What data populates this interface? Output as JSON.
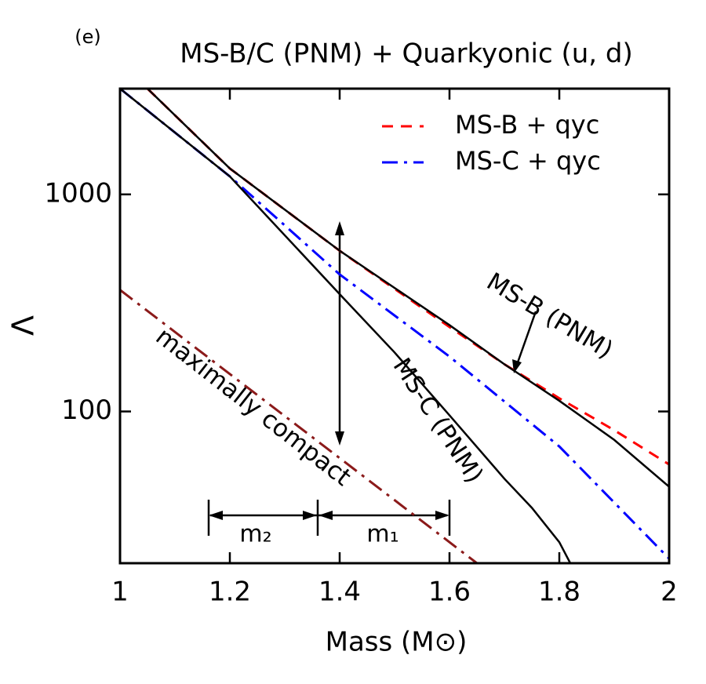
{
  "chart_data": {
    "type": "line",
    "panel_label": "(e)",
    "title": "MS-B/C (PNM) + Quarkyonic (u, d)",
    "xlabel": "Mass (M⊙)",
    "ylabel": "Λ",
    "log_y": true,
    "legend": "upper right",
    "xlim": [
      1,
      2
    ],
    "xticks": [
      1,
      1.2,
      1.4,
      1.6,
      1.8,
      2
    ],
    "ylim": [
      20,
      3070
    ],
    "yticks": [
      100,
      1000
    ],
    "series": [
      {
        "name": "MS-B + qyc",
        "color": "#ff0000",
        "style": "dashed",
        "x": [
          1.05,
          1.2,
          1.4,
          1.6,
          1.7,
          1.8,
          1.9,
          2.0
        ],
        "values": [
          3070,
          1316,
          550,
          245,
          165,
          115,
          82,
          57
        ]
      },
      {
        "name": "MS-C + qyc",
        "color": "#0000ff",
        "style": "dashdot",
        "x": [
          1.0,
          1.2,
          1.4,
          1.6,
          1.8,
          2.0
        ],
        "values": [
          3070,
          1210,
          428,
          179,
          69,
          21
        ]
      },
      {
        "name": "MS-B (PNM)",
        "color": "#000000",
        "style": "solid",
        "legend": false,
        "x": [
          1.05,
          1.2,
          1.4,
          1.6,
          1.7,
          1.8,
          1.9,
          2.0
        ],
        "values": [
          3070,
          1316,
          550,
          250,
          165,
          112,
          74,
          45
        ]
      },
      {
        "name": "MS-C (PNM)",
        "color": "#000000",
        "style": "solid",
        "legend": false,
        "x": [
          1.0,
          1.2,
          1.4,
          1.5,
          1.6,
          1.7,
          1.75,
          1.8,
          1.82
        ],
        "values": [
          3070,
          1210,
          347,
          187,
          96,
          49,
          36,
          25,
          20
        ]
      },
      {
        "name": "maximally compact",
        "color": "#8b1a1a",
        "style": "dashdot",
        "legend": false,
        "x": [
          1.0,
          1.65
        ],
        "values": [
          363,
          20
        ]
      }
    ],
    "annotations": {
      "m2": "m₂",
      "m1": "m₁"
    }
  }
}
